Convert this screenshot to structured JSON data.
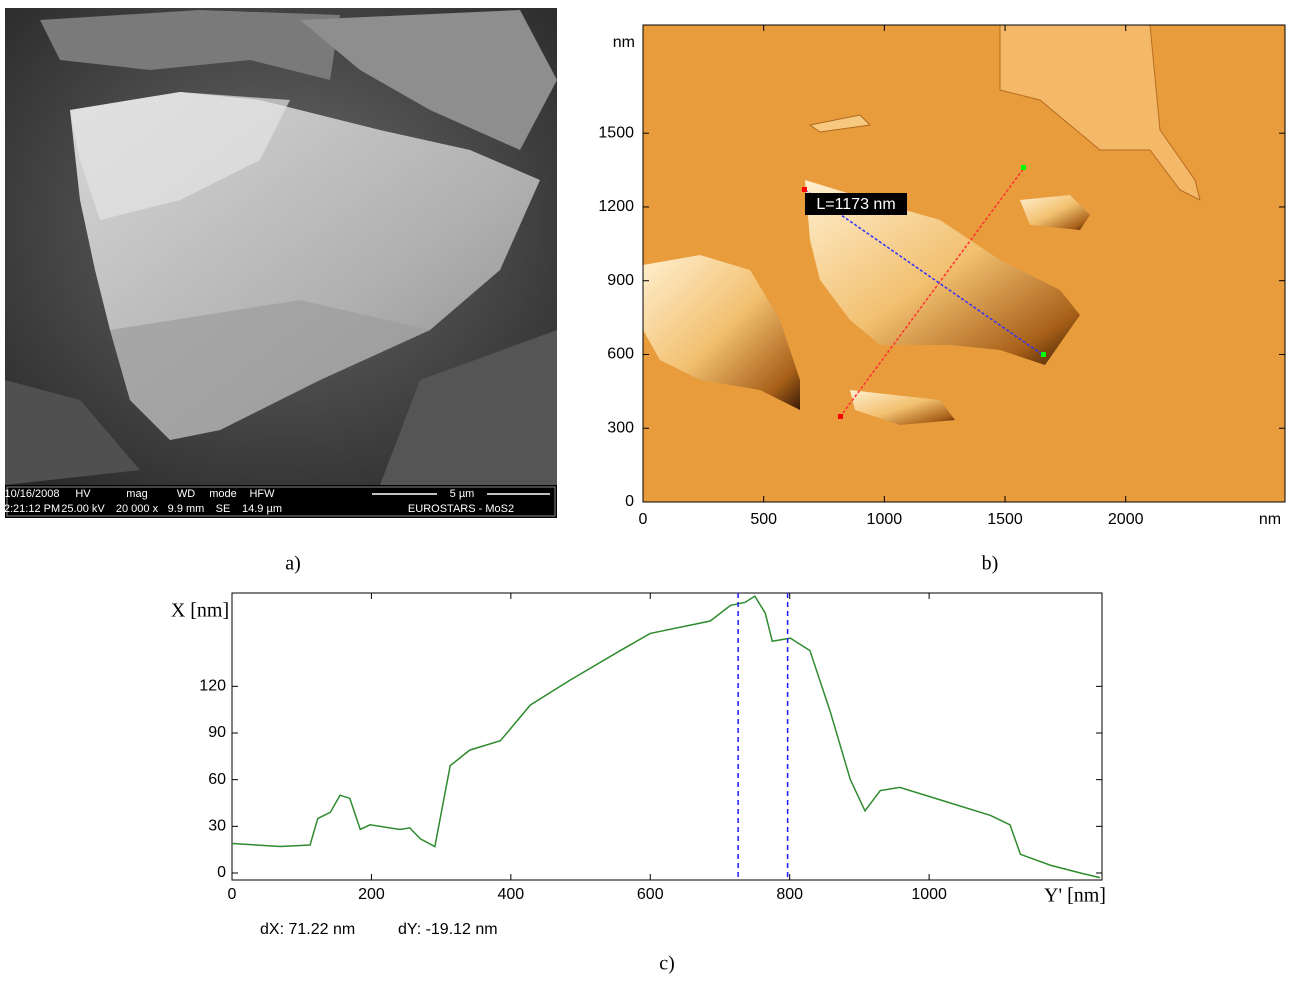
{
  "sem": {
    "info_bar": {
      "columns": [
        {
          "header": "10/16/2008",
          "value": "2:21:12 PM"
        },
        {
          "header": "HV",
          "value": "25.00 kV"
        },
        {
          "header": "mag",
          "value": "20 000 x"
        },
        {
          "header": "WD",
          "value": "9.9 mm"
        },
        {
          "header": "mode",
          "value": "SE"
        },
        {
          "header": "HFW",
          "value": "14.9 µm"
        }
      ],
      "scale_bar": "5 µm",
      "label": "EUROSTARS - MoS2"
    }
  },
  "panel_labels": [
    "a)",
    "b)",
    "c)"
  ],
  "chart_data": [
    {
      "type": "image",
      "xlim": [
        0,
        2660
      ],
      "ylim": [
        0,
        1940
      ],
      "xticks": [
        0,
        500,
        1000,
        1500,
        2000
      ],
      "yticks": [
        0,
        300,
        600,
        900,
        1200,
        1500
      ],
      "x_unit": "nm",
      "y_unit": "nm",
      "annotation": "L=1173 nm"
    },
    {
      "type": "line",
      "color": "#2e8b2e",
      "x": [
        0,
        69,
        112,
        123,
        141,
        155,
        169,
        184,
        198,
        241,
        255,
        270,
        291,
        313,
        341,
        385,
        428,
        485,
        557,
        600,
        686,
        715,
        736,
        750,
        765,
        775,
        801,
        829,
        858,
        887,
        908,
        930,
        958,
        1016,
        1088,
        1116,
        1131,
        1174,
        1217,
        1245
      ],
      "values": [
        19,
        17,
        18,
        35,
        39,
        50,
        48,
        28,
        31,
        28,
        29,
        22,
        17,
        69,
        79,
        85,
        108,
        124,
        143,
        154,
        162,
        172,
        174,
        178,
        167,
        149,
        151,
        143,
        104,
        60,
        40,
        53,
        55,
        47,
        37,
        31,
        12,
        5,
        0,
        -3
      ],
      "xlim": [
        0,
        1248
      ],
      "ylim": [
        -4.5,
        180
      ],
      "xticks": [
        0,
        200,
        400,
        600,
        800,
        1000
      ],
      "yticks": [
        0,
        30,
        60,
        90,
        120
      ],
      "x_label": "Y' [nm]",
      "y_label": "X [nm]",
      "cursors": [
        726,
        797
      ],
      "cursor_color": "#1a1aff",
      "readouts": [
        "dX: 71.22 nm",
        "dY: -19.12 nm"
      ]
    }
  ]
}
